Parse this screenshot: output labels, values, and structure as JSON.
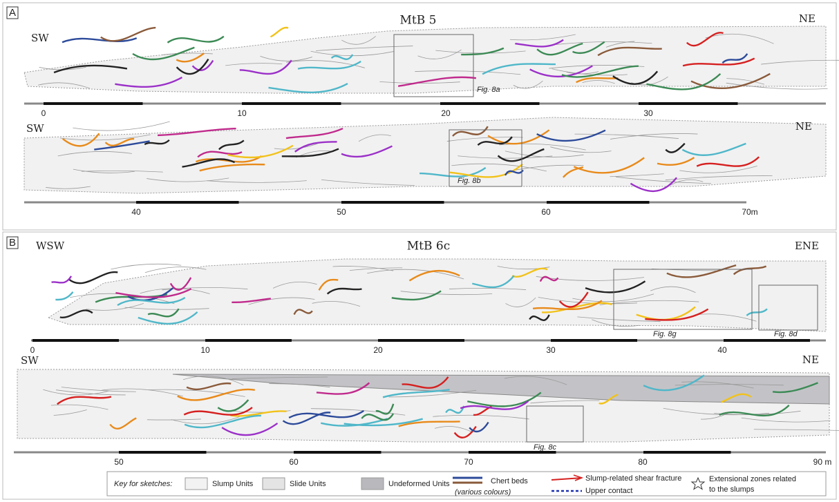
{
  "panels": [
    {
      "label": "A",
      "strips": [
        {
          "left": "SW",
          "right": "NE",
          "title": "MtB 5",
          "figures": [
            "Fig. 8a"
          ],
          "scale": [
            "0",
            "10",
            "20",
            "30"
          ]
        },
        {
          "left": "SW",
          "right": "NE",
          "figures": [
            "Fig. 8b"
          ],
          "scale": [
            "40",
            "50",
            "60",
            "70m"
          ]
        }
      ]
    },
    {
      "label": "B",
      "strips": [
        {
          "left": "WSW",
          "right": "ENE",
          "title": "MtB 6c",
          "figures": [
            "Fig. 8g",
            "Fig. 8d"
          ],
          "scale": [
            "0",
            "10",
            "20",
            "30",
            "40"
          ]
        },
        {
          "left": "SW",
          "right": "NE",
          "figures": [
            "Fig. 8c"
          ],
          "scale": [
            "50",
            "60",
            "70",
            "80",
            "90 m"
          ]
        }
      ]
    }
  ],
  "key": {
    "title": "Key for sketches:",
    "items": [
      "Slump Units",
      "Slide Units",
      "Undeformed Units"
    ],
    "chert": "Chert beds",
    "chert_note": "(various colours)",
    "shear": "Slump-related shear fracture",
    "contact": "Upper contact",
    "extensional": [
      "Extensional zones related",
      "to the slumps"
    ]
  }
}
